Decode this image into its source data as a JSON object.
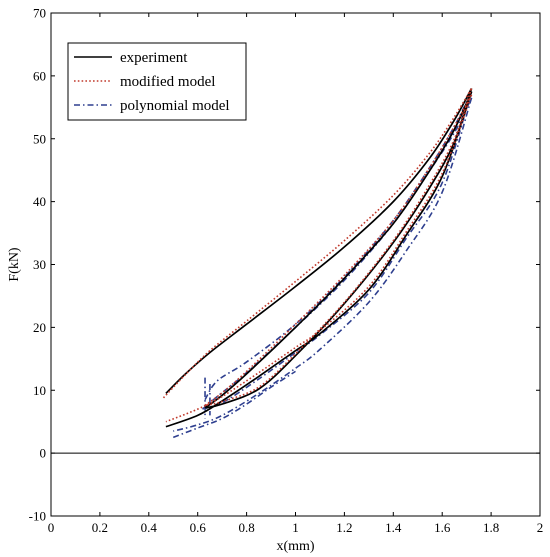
{
  "chart_data": {
    "type": "line",
    "xlabel": "x(mm)",
    "ylabel": "F(kN)",
    "xlim": [
      0,
      2
    ],
    "ylim": [
      -10,
      70
    ],
    "x_ticks": [
      "0",
      "0.2",
      "0.4",
      "0.6",
      "0.8",
      "1",
      "1.2",
      "1.4",
      "1.6",
      "1.8",
      "2"
    ],
    "y_ticks": [
      "-10",
      "0",
      "10",
      "20",
      "30",
      "40",
      "50",
      "60",
      "70"
    ],
    "reference_line_y": 0,
    "grid": false,
    "legend_position": "top-left",
    "series": [
      {
        "name": "experiment",
        "color": "#000000",
        "style": "solid",
        "segments": [
          [
            [
              0.47,
              9.5
            ],
            [
              0.55,
              12.6
            ],
            [
              0.65,
              16.0
            ],
            [
              0.8,
              20.5
            ],
            [
              1.0,
              26.5
            ],
            [
              1.2,
              32.8
            ],
            [
              1.4,
              40.0
            ],
            [
              1.55,
              47.0
            ],
            [
              1.65,
              53.0
            ],
            [
              1.72,
              58.0
            ]
          ],
          [
            [
              1.72,
              58.0
            ],
            [
              1.65,
              49.5
            ],
            [
              1.55,
              42.3
            ],
            [
              1.4,
              33.5
            ],
            [
              1.2,
              23.8
            ],
            [
              1.0,
              15.5
            ],
            [
              0.85,
              10.2
            ],
            [
              0.7,
              7.8
            ],
            [
              0.63,
              7.2
            ]
          ],
          [
            [
              0.63,
              7.2
            ],
            [
              0.7,
              9.2
            ],
            [
              0.8,
              12.6
            ],
            [
              1.0,
              20.0
            ],
            [
              1.2,
              27.8
            ],
            [
              1.4,
              36.5
            ],
            [
              1.55,
              45.0
            ],
            [
              1.65,
              51.5
            ],
            [
              1.72,
              57.5
            ]
          ],
          [
            [
              1.72,
              57.5
            ],
            [
              1.6,
              44.0
            ],
            [
              1.45,
              34.5
            ],
            [
              1.3,
              26.0
            ],
            [
              1.1,
              19.0
            ],
            [
              1.0,
              16.3
            ],
            [
              0.85,
              12.2
            ],
            [
              0.7,
              8.3
            ],
            [
              0.6,
              6.0
            ],
            [
              0.47,
              4.2
            ]
          ]
        ]
      },
      {
        "name": "modified model",
        "color": "#c0392b",
        "style": "dotted",
        "segments": [
          [
            [
              0.46,
              8.8
            ],
            [
              0.55,
              12.5
            ],
            [
              0.65,
              16.3
            ],
            [
              0.8,
              21.0
            ],
            [
              1.0,
              27.3
            ],
            [
              1.2,
              33.8
            ],
            [
              1.4,
              41.0
            ],
            [
              1.55,
              47.8
            ],
            [
              1.65,
              53.5
            ],
            [
              1.72,
              58.0
            ]
          ],
          [
            [
              1.72,
              58.0
            ],
            [
              1.65,
              50.0
            ],
            [
              1.55,
              42.8
            ],
            [
              1.4,
              33.8
            ],
            [
              1.2,
              24.0
            ],
            [
              1.0,
              15.8
            ],
            [
              0.85,
              10.5
            ],
            [
              0.7,
              8.2
            ],
            [
              0.63,
              7.6
            ]
          ],
          [
            [
              0.63,
              7.6
            ],
            [
              0.7,
              9.6
            ],
            [
              0.8,
              13.0
            ],
            [
              1.0,
              20.5
            ],
            [
              1.2,
              28.3
            ],
            [
              1.4,
              37.0
            ],
            [
              1.55,
              45.5
            ],
            [
              1.65,
              52.0
            ],
            [
              1.72,
              57.0
            ]
          ],
          [
            [
              1.72,
              57.0
            ],
            [
              1.6,
              44.5
            ],
            [
              1.45,
              35.0
            ],
            [
              1.3,
              26.5
            ],
            [
              1.1,
              19.5
            ],
            [
              1.0,
              16.8
            ],
            [
              0.85,
              12.8
            ],
            [
              0.7,
              9.0
            ],
            [
              0.6,
              7.0
            ],
            [
              0.47,
              5.0
            ]
          ]
        ]
      },
      {
        "name": "polynomial model",
        "color": "#2e3f8f",
        "style": "dashdot",
        "segments": [
          [
            [
              0.63,
              8.5
            ],
            [
              0.68,
              11.5
            ],
            [
              0.8,
              14.5
            ],
            [
              1.0,
              20.5
            ],
            [
              1.2,
              28.0
            ],
            [
              1.4,
              37.0
            ],
            [
              1.55,
              45.5
            ],
            [
              1.65,
              52.0
            ],
            [
              1.72,
              57.5
            ]
          ],
          [
            [
              1.72,
              57.5
            ],
            [
              1.6,
              43.0
            ],
            [
              1.45,
              34.0
            ],
            [
              1.3,
              25.5
            ],
            [
              1.1,
              18.8
            ],
            [
              1.0,
              16.0
            ],
            [
              0.85,
              11.8
            ],
            [
              0.7,
              8.0
            ],
            [
              0.62,
              7.0
            ]
          ],
          [
            [
              0.62,
              7.0
            ],
            [
              0.68,
              9.0
            ],
            [
              0.8,
              12.8
            ],
            [
              1.0,
              20.0
            ],
            [
              1.2,
              27.5
            ],
            [
              1.4,
              36.5
            ],
            [
              1.55,
              45.0
            ],
            [
              1.65,
              51.0
            ],
            [
              1.72,
              56.5
            ]
          ],
          [
            [
              1.72,
              56.5
            ],
            [
              1.6,
              41.5
            ],
            [
              1.45,
              32.0
            ],
            [
              1.3,
              24.0
            ],
            [
              1.1,
              16.5
            ],
            [
              1.0,
              13.5
            ],
            [
              0.85,
              9.5
            ],
            [
              0.7,
              6.0
            ],
            [
              0.6,
              4.5
            ],
            [
              0.5,
              3.5
            ]
          ],
          [
            [
              0.63,
              12.0
            ],
            [
              0.63,
              5.5
            ]
          ],
          [
            [
              0.65,
              11.0
            ],
            [
              0.65,
              6.0
            ]
          ],
          [
            [
              0.5,
              2.5
            ],
            [
              0.6,
              4.0
            ],
            [
              0.7,
              5.5
            ],
            [
              0.8,
              7.8
            ],
            [
              0.9,
              10.5
            ],
            [
              1.0,
              13.0
            ]
          ]
        ]
      }
    ]
  }
}
